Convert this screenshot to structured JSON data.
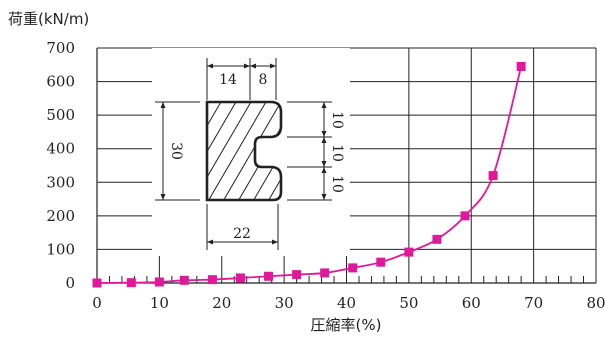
{
  "chart_data": {
    "type": "line",
    "title": "",
    "ylabel": "荷重(kN/m)",
    "xlabel": "圧縮率(%)",
    "xlim": [
      0,
      80
    ],
    "ylim": [
      0,
      700
    ],
    "xticks": [
      0,
      10,
      20,
      30,
      40,
      50,
      60,
      70,
      80
    ],
    "yticks": [
      0,
      100,
      200,
      300,
      400,
      500,
      600,
      700
    ],
    "grid": true,
    "marker": "square",
    "color": "#e0189a",
    "series": [
      {
        "x": [
          0,
          5.5,
          10,
          14,
          18.5,
          23,
          27.5,
          32,
          36.5,
          41,
          45.5,
          50,
          54.5,
          59,
          63.5,
          68
        ],
        "y": [
          0,
          1,
          3,
          8,
          10,
          15,
          20,
          25,
          30,
          45,
          62,
          92,
          130,
          200,
          320,
          645
        ]
      }
    ],
    "inset": {
      "name": "cross-section",
      "dimensions": {
        "top_a": "14",
        "top_b": "8",
        "height": "30",
        "right_1": "10",
        "right_2": "10",
        "right_3": "10",
        "bottom": "22"
      }
    }
  }
}
